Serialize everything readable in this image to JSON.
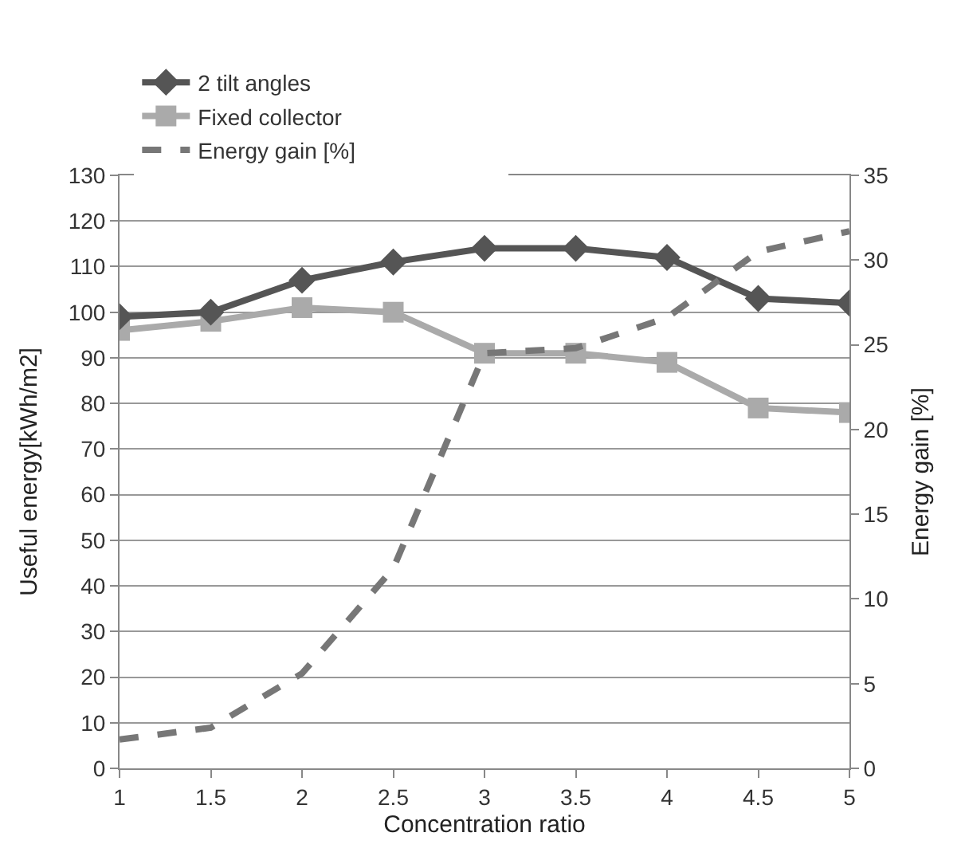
{
  "chart_data": {
    "type": "line",
    "xlabel": "Concentration ratio",
    "ylabel": "Useful energy[kWh/m2]",
    "y2label": "Energy gain [%]",
    "x": [
      1,
      1.5,
      2,
      2.5,
      3,
      3.5,
      4,
      4.5,
      5
    ],
    "series": [
      {
        "name": "2 tilt angles",
        "color": "#555555",
        "marker": "diamond",
        "values": [
          99,
          100,
          107,
          111,
          114,
          114,
          112,
          103,
          102
        ]
      },
      {
        "name": "Fixed collector",
        "color": "#aaaaaa",
        "marker": "square",
        "values": [
          96,
          98,
          101,
          100,
          91,
          91,
          89,
          79,
          78
        ]
      },
      {
        "name": "Energy gain [%]",
        "color": "#777777",
        "line_style": "dashed",
        "marker": "none",
        "axis": "y2",
        "values": [
          1.7,
          2.4,
          5.6,
          11.8,
          24.5,
          24.8,
          26.6,
          30.5,
          31.7
        ]
      }
    ],
    "xlim": [
      1,
      5
    ],
    "xticks": [
      1,
      1.5,
      2,
      2.5,
      3,
      3.5,
      4,
      4.5,
      5
    ],
    "ylim": [
      0,
      130
    ],
    "yticks": [
      0,
      10,
      20,
      30,
      40,
      50,
      60,
      70,
      80,
      90,
      100,
      110,
      120,
      130
    ],
    "y2lim": [
      0,
      35
    ],
    "y2ticks": [
      0,
      5,
      10,
      15,
      20,
      25,
      30,
      35
    ],
    "grid": "y",
    "legend": "top"
  }
}
